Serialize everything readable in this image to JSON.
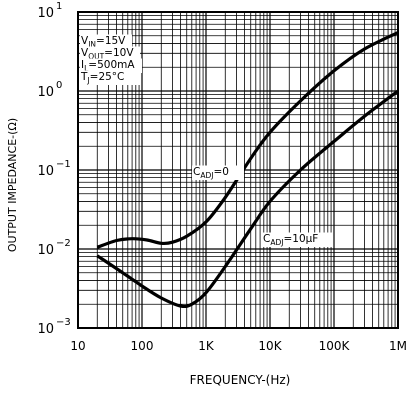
{
  "chart_data": {
    "type": "line",
    "xscale": "log",
    "yscale": "log",
    "xlim": [
      10,
      1000000
    ],
    "ylim": [
      0.001,
      10
    ],
    "xlabel": "FREQUENCY-(Hz)",
    "ylabel": "OUTPUT IMPEDANCE-(Ω)",
    "x_ticks": [
      {
        "value": 10,
        "label": "10"
      },
      {
        "value": 100,
        "label": "100"
      },
      {
        "value": 1000,
        "label": "1K"
      },
      {
        "value": 10000,
        "label": "10K"
      },
      {
        "value": 100000,
        "label": "100K"
      },
      {
        "value": 1000000,
        "label": "1M"
      }
    ],
    "y_ticks": [
      {
        "value": 10,
        "base": "10",
        "exp": "1"
      },
      {
        "value": 1,
        "base": "10",
        "exp": "0"
      },
      {
        "value": 0.1,
        "base": "10",
        "exp": "−1"
      },
      {
        "value": 0.01,
        "base": "10",
        "exp": "−2"
      },
      {
        "value": 0.001,
        "base": "10",
        "exp": "−3"
      }
    ],
    "grid": true,
    "conditions": [
      {
        "name": "V",
        "sub": "IN",
        "value": "=15V"
      },
      {
        "name": "V",
        "sub": "OUT",
        "value": "=10V"
      },
      {
        "name": "I",
        "sub": "L",
        "value": "=500mA"
      },
      {
        "name": "T",
        "sub": "J",
        "value": "=25°C"
      }
    ],
    "series": [
      {
        "label_main": "C",
        "label_sub": "ADJ",
        "label_value": "=0",
        "points": [
          [
            20,
            0.0105
          ],
          [
            40,
            0.0128
          ],
          [
            70,
            0.0135
          ],
          [
            120,
            0.013
          ],
          [
            200,
            0.0118
          ],
          [
            300,
            0.0122
          ],
          [
            500,
            0.0145
          ],
          [
            1000,
            0.022
          ],
          [
            2000,
            0.045
          ],
          [
            5000,
            0.14
          ],
          [
            10000,
            0.3
          ],
          [
            30000,
            0.75
          ],
          [
            100000,
            1.8
          ],
          [
            300000,
            3.4
          ],
          [
            1000000,
            5.5
          ]
        ]
      },
      {
        "label_main": "C",
        "label_sub": "ADJ",
        "label_value": "=10µF",
        "points": [
          [
            20,
            0.0082
          ],
          [
            50,
            0.005
          ],
          [
            100,
            0.0034
          ],
          [
            200,
            0.0024
          ],
          [
            400,
            0.0019
          ],
          [
            600,
            0.002
          ],
          [
            1000,
            0.0028
          ],
          [
            2000,
            0.006
          ],
          [
            5000,
            0.018
          ],
          [
            10000,
            0.04
          ],
          [
            30000,
            0.1
          ],
          [
            100000,
            0.23
          ],
          [
            300000,
            0.48
          ],
          [
            1000000,
            1.0
          ]
        ]
      }
    ]
  }
}
